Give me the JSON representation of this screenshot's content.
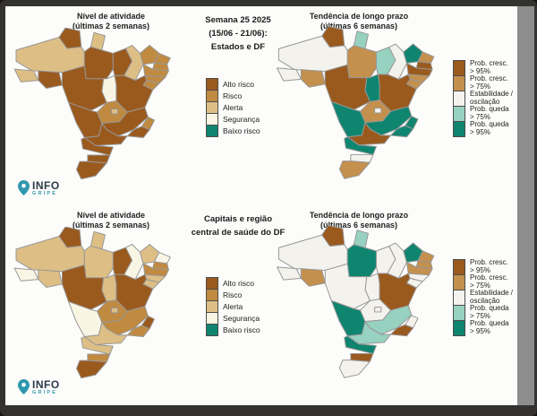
{
  "frame": {
    "border_color": "#343230",
    "content_bg": "#fcfcfa",
    "scrollbar_color": "#8d8d8d"
  },
  "logo": {
    "info": "INFO",
    "gripe": "GRIPE",
    "pin_color": "#2f97ad",
    "info_color": "#2b3a4a"
  },
  "rows": [
    {
      "activity_title_l1": "Nível de atividade",
      "activity_title_l2": "(últimas 2 semanas)",
      "heading_l1": "Semana 25 2025",
      "heading_l2": "(15/06 - 21/06):",
      "heading_l3": "Estados e DF",
      "trend_title_l1": "Tendência de longo prazo",
      "trend_title_l2": "(últimas 6 semanas)"
    },
    {
      "activity_title_l1": "Nível de atividade",
      "activity_title_l2": "(últimas 2 semanas)",
      "heading_l1": "Capitais e região",
      "heading_l2": "central de saúde do DF",
      "heading_l3": "",
      "trend_title_l1": "Tendência de longo prazo",
      "trend_title_l2": "(últimas 6 semanas)"
    }
  ],
  "activity_legend": {
    "items": [
      {
        "label": "Alto risco",
        "color": "#9a5a1e"
      },
      {
        "label": "Risco",
        "color": "#c08a41"
      },
      {
        "label": "Alerta",
        "color": "#ddbf86"
      },
      {
        "label": "Segurança",
        "color": "#f9f5e4"
      },
      {
        "label": "Baixo risco",
        "color": "#0f8570"
      }
    ]
  },
  "trend_legend": {
    "items": [
      {
        "line1": "Prob. cresc.",
        "line2": "> 95%",
        "color": "#9a5a1e"
      },
      {
        "line1": "Prob. cresc.",
        "line2": "> 75%",
        "color": "#c4904d"
      },
      {
        "line1": "Estabilidade /",
        "line2": "oscilação",
        "color": "#f3f2ed"
      },
      {
        "line1": "Prob. queda",
        "line2": "> 75%",
        "color": "#97d1c0"
      },
      {
        "line1": "Prob. queda",
        "line2": "> 95%",
        "color": "#0f8570"
      }
    ]
  },
  "category_colors": {
    "alto": "#9a5a1e",
    "risco": "#c08a41",
    "alerta": "#ddbf86",
    "seguranca": "#f9f5e4",
    "baixo": "#0f8570",
    "cresc95": "#9a5a1e",
    "cresc75": "#c4904d",
    "estab": "#f3f2ed",
    "queda75": "#97d1c0",
    "queda95": "#0f8570"
  },
  "maps": {
    "states_activity": {
      "RR": "alto",
      "AP": "alerta",
      "AM": "alerta",
      "PA": "alto",
      "MA": "alto",
      "PI": "alerta",
      "CE": "risco",
      "RN": "risco",
      "PB": "risco",
      "PE": "risco",
      "AL": "risco",
      "SE": "risco",
      "BA": "alto",
      "TO": "seguranca",
      "AC": "alerta",
      "RO": "alto",
      "MT": "alto",
      "GO": "risco",
      "DF": "alerta",
      "MG": "alto",
      "ES": "risco",
      "RJ": "alto",
      "MS": "alto",
      "SP": "alto",
      "PR": "alto",
      "SC": "alto",
      "RS": "alto"
    },
    "states_trend": {
      "RR": "cresc95",
      "AP": "queda75",
      "AM": "estab",
      "PA": "cresc75",
      "MA": "queda75",
      "PI": "estab",
      "CE": "queda95",
      "RN": "cresc75",
      "PB": "cresc95",
      "PE": "cresc95",
      "AL": "cresc75",
      "SE": "cresc75",
      "BA": "cresc95",
      "TO": "queda95",
      "AC": "estab",
      "RO": "cresc75",
      "MT": "cresc95",
      "GO": "cresc75",
      "DF": "estab",
      "MG": "queda95",
      "ES": "queda95",
      "RJ": "queda95",
      "MS": "queda95",
      "SP": "cresc95",
      "PR": "queda95",
      "SC": "estab",
      "RS": "cresc75"
    },
    "capitals_activity": {
      "RR": "alto",
      "AP": "alerta",
      "AM": "alerta",
      "PA": "alerta",
      "MA": "alto",
      "PI": "seguranca",
      "CE": "alerta",
      "RN": "seguranca",
      "PB": "risco",
      "PE": "risco",
      "AL": "alerta",
      "SE": "alerta",
      "BA": "alto",
      "TO": "alerta",
      "AC": "seguranca",
      "RO": "alerta",
      "MT": "alto",
      "GO": "risco",
      "DF": "alerta",
      "MG": "risco",
      "ES": "alto",
      "RJ": "risco",
      "MS": "seguranca",
      "SP": "alerta",
      "PR": "alerta",
      "SC": "risco",
      "RS": "alto"
    },
    "capitals_trend": {
      "RR": "cresc95",
      "AP": "queda75",
      "AM": "estab",
      "PA": "queda95",
      "MA": "estab",
      "PI": "estab",
      "CE": "queda95",
      "RN": "cresc75",
      "PB": "cresc75",
      "PE": "cresc75",
      "AL": "estab",
      "SE": "estab",
      "BA": "cresc95",
      "TO": "estab",
      "AC": "estab",
      "RO": "cresc75",
      "MT": "estab",
      "GO": "estab",
      "DF": "estab",
      "MG": "queda75",
      "ES": "estab",
      "RJ": "cresc95",
      "MS": "queda95",
      "SP": "queda75",
      "PR": "queda95",
      "SC": "cresc95",
      "RS": "estab"
    }
  }
}
